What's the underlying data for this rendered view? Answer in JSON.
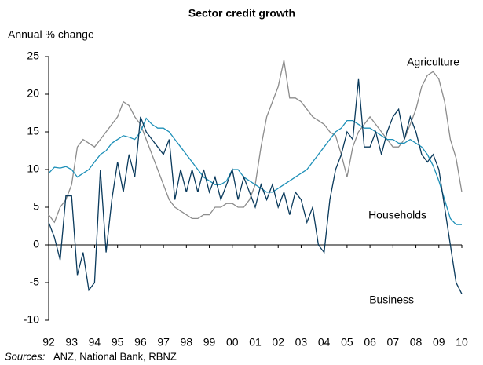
{
  "chart_data": {
    "type": "line",
    "title": "Sector credit growth",
    "y_label": "Annual % change",
    "source_label": "Sources:",
    "source_text": "ANZ, National Bank, RBNZ",
    "x": [
      1992,
      1992.25,
      1992.5,
      1992.75,
      1993,
      1993.25,
      1993.5,
      1993.75,
      1994,
      1994.25,
      1994.5,
      1994.75,
      1995,
      1995.25,
      1995.5,
      1995.75,
      1996,
      1996.25,
      1996.5,
      1996.75,
      1997,
      1997.25,
      1997.5,
      1997.75,
      1998,
      1998.25,
      1998.5,
      1998.75,
      1999,
      1999.25,
      1999.5,
      1999.75,
      2000,
      2000.25,
      2000.5,
      2000.75,
      2001,
      2001.25,
      2001.5,
      2001.75,
      2002,
      2002.25,
      2002.5,
      2002.75,
      2003,
      2003.25,
      2003.5,
      2003.75,
      2004,
      2004.25,
      2004.5,
      2004.75,
      2005,
      2005.25,
      2005.5,
      2005.75,
      2006,
      2006.25,
      2006.5,
      2006.75,
      2007,
      2007.25,
      2007.5,
      2007.75,
      2008,
      2008.25,
      2008.5,
      2008.75,
      2009,
      2009.25,
      2009.5,
      2009.75,
      2010
    ],
    "series": [
      {
        "name": "Agriculture",
        "color": "#8c8c8c",
        "values": [
          4,
          3,
          5,
          6,
          8,
          13,
          14,
          13.5,
          13,
          14,
          15,
          16,
          17,
          19,
          18.5,
          17,
          16,
          14,
          12,
          10,
          8,
          6,
          5,
          4.5,
          4,
          3.5,
          3.5,
          4,
          4,
          5,
          5,
          5.5,
          5.5,
          5,
          5,
          6,
          8,
          13,
          17,
          19,
          21,
          24.5,
          19.5,
          19.5,
          19,
          18,
          17,
          16.5,
          16,
          15,
          14.5,
          12,
          9,
          13,
          15,
          16,
          17,
          16,
          15,
          14,
          13,
          13,
          14,
          16,
          18,
          21,
          22.5,
          23,
          22,
          19,
          14,
          11.5,
          7
        ]
      },
      {
        "name": "Households",
        "color": "#1e90b8",
        "values": [
          9.5,
          10.3,
          10.2,
          10.4,
          10,
          9,
          9.5,
          10,
          11,
          12,
          12.5,
          13.5,
          14,
          14.5,
          14.3,
          14,
          15,
          16.8,
          16,
          15.5,
          15.5,
          15,
          14,
          13,
          12,
          11,
          10,
          9,
          8.5,
          8,
          8,
          8.5,
          10,
          10,
          9,
          8.5,
          8,
          7.5,
          7,
          7,
          7.5,
          8,
          8.5,
          9,
          9.5,
          10,
          11,
          12,
          13,
          14,
          15,
          15.5,
          16.5,
          16.5,
          16,
          15.5,
          15.5,
          15,
          14.5,
          14,
          14,
          13.5,
          13.5,
          14,
          13.5,
          13,
          12,
          10.5,
          8.5,
          6,
          3.5,
          2.7,
          2.7
        ]
      },
      {
        "name": "Business",
        "color": "#0a3a5c",
        "values": [
          3,
          1,
          -2,
          6.5,
          6.5,
          -4,
          -1,
          -6,
          -5,
          10,
          -1,
          6,
          11,
          7,
          12,
          9,
          17,
          15,
          14,
          13,
          12,
          14,
          6,
          10,
          7,
          10,
          7,
          10,
          7,
          9,
          6,
          8,
          10,
          6,
          9,
          7,
          5,
          8,
          6,
          8,
          5,
          7,
          4,
          7,
          6,
          3,
          5,
          0,
          -1,
          6,
          10,
          12,
          15,
          14,
          22,
          13,
          13,
          15,
          12,
          15,
          17,
          18,
          14,
          17,
          15,
          12,
          11,
          12,
          10,
          5,
          0,
          -5,
          -6.5
        ]
      }
    ],
    "xlim": [
      1992,
      2010
    ],
    "xticks": [
      {
        "value": 1992,
        "label": "92"
      },
      {
        "value": 1993,
        "label": "93"
      },
      {
        "value": 1994,
        "label": "94"
      },
      {
        "value": 1995,
        "label": "95"
      },
      {
        "value": 1996,
        "label": "96"
      },
      {
        "value": 1997,
        "label": "97"
      },
      {
        "value": 1998,
        "label": "98"
      },
      {
        "value": 1999,
        "label": "99"
      },
      {
        "value": 2000,
        "label": "00"
      },
      {
        "value": 2001,
        "label": "01"
      },
      {
        "value": 2002,
        "label": "02"
      },
      {
        "value": 2003,
        "label": "03"
      },
      {
        "value": 2004,
        "label": "04"
      },
      {
        "value": 2005,
        "label": "05"
      },
      {
        "value": 2006,
        "label": "06"
      },
      {
        "value": 2007,
        "label": "07"
      },
      {
        "value": 2008,
        "label": "08"
      },
      {
        "value": 2009,
        "label": "09"
      },
      {
        "value": 2010,
        "label": "10"
      }
    ],
    "ylim": [
      -10,
      25
    ],
    "yticks": [
      -10,
      -5,
      0,
      5,
      10,
      15,
      20,
      25
    ],
    "grid": false
  }
}
